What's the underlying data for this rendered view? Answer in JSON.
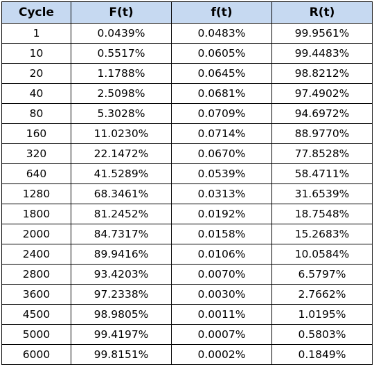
{
  "table": {
    "headers": [
      "Cycle",
      "F(t)",
      "f(t)",
      "R(t)"
    ],
    "header_bg": "#c6d9f1",
    "rows": [
      [
        "1",
        "0.0439%",
        "0.0483%",
        "99.9561%"
      ],
      [
        "10",
        "0.5517%",
        "0.0605%",
        "99.4483%"
      ],
      [
        "20",
        "1.1788%",
        "0.0645%",
        "98.8212%"
      ],
      [
        "40",
        "2.5098%",
        "0.0681%",
        "97.4902%"
      ],
      [
        "80",
        "5.3028%",
        "0.0709%",
        "94.6972%"
      ],
      [
        "160",
        "11.0230%",
        "0.0714%",
        "88.9770%"
      ],
      [
        "320",
        "22.1472%",
        "0.0670%",
        "77.8528%"
      ],
      [
        "640",
        "41.5289%",
        "0.0539%",
        "58.4711%"
      ],
      [
        "1280",
        "68.3461%",
        "0.0313%",
        "31.6539%"
      ],
      [
        "1800",
        "81.2452%",
        "0.0192%",
        "18.7548%"
      ],
      [
        "2000",
        "84.7317%",
        "0.0158%",
        "15.2683%"
      ],
      [
        "2400",
        "89.9416%",
        "0.0106%",
        "10.0584%"
      ],
      [
        "2800",
        "93.4203%",
        "0.0070%",
        "6.5797%"
      ],
      [
        "3600",
        "97.2338%",
        "0.0030%",
        "2.7662%"
      ],
      [
        "4500",
        "98.9805%",
        "0.0011%",
        "1.0195%"
      ],
      [
        "5000",
        "99.4197%",
        "0.0007%",
        "0.5803%"
      ],
      [
        "6000",
        "99.8151%",
        "0.0002%",
        "0.1849%"
      ]
    ]
  }
}
